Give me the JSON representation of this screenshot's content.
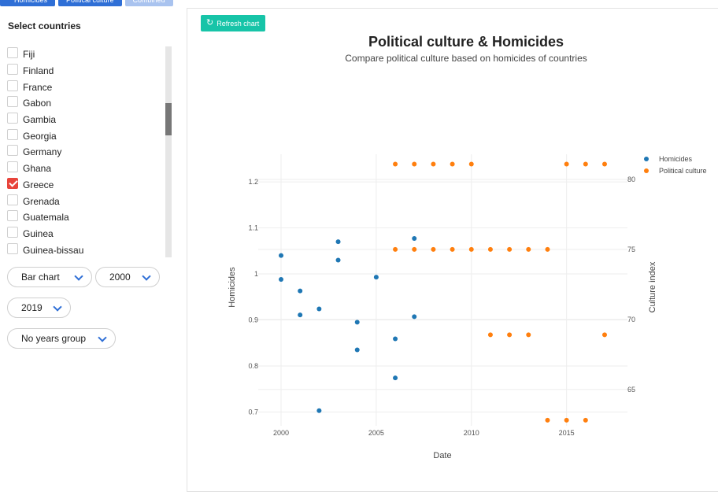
{
  "top_tabs": [
    "Homicides",
    "Political culture",
    "Combined"
  ],
  "sidebar": {
    "heading": "Select countries",
    "countries": [
      {
        "name": "Fiji",
        "checked": false
      },
      {
        "name": "Finland",
        "checked": false
      },
      {
        "name": "France",
        "checked": false
      },
      {
        "name": "Gabon",
        "checked": false
      },
      {
        "name": "Gambia",
        "checked": false
      },
      {
        "name": "Georgia",
        "checked": false
      },
      {
        "name": "Germany",
        "checked": false
      },
      {
        "name": "Ghana",
        "checked": false
      },
      {
        "name": "Greece",
        "checked": true
      },
      {
        "name": "Grenada",
        "checked": false
      },
      {
        "name": "Guatemala",
        "checked": false
      },
      {
        "name": "Guinea",
        "checked": false
      },
      {
        "name": "Guinea-bissau",
        "checked": false
      }
    ],
    "chart_type": "Bar chart",
    "year_from": "2000",
    "year_to": "2019",
    "years_group": "No years group"
  },
  "refresh_label": "Refresh chart",
  "chart_data": {
    "type": "scatter",
    "title": "Political culture & Homicides",
    "subtitle": "Compare political culture based on homicides of countries",
    "xlabel": "Date",
    "ylabel": "Homicides",
    "y2label": "Culture index",
    "xlim": [
      1998.8,
      2018.2
    ],
    "ylim": [
      0.67,
      1.26
    ],
    "y2lim": [
      62.4,
      81.8
    ],
    "xticks": [
      2000,
      2005,
      2010,
      2015
    ],
    "yticks": [
      0.7,
      0.8,
      0.9,
      1,
      1.1,
      1.2
    ],
    "y2ticks": [
      65,
      70,
      75,
      80
    ],
    "legend_position": "top-right",
    "series": [
      {
        "name": "Homicides",
        "axis": "left",
        "color": "#1f77b4",
        "points": [
          [
            2000,
            1.04
          ],
          [
            2000,
            0.988
          ],
          [
            2001,
            0.963
          ],
          [
            2001,
            0.911
          ],
          [
            2002,
            0.924
          ],
          [
            2002,
            0.703
          ],
          [
            2003,
            1.07
          ],
          [
            2003,
            1.03
          ],
          [
            2004,
            0.895
          ],
          [
            2004,
            0.835
          ],
          [
            2005,
            0.993
          ],
          [
            2006,
            0.859
          ],
          [
            2006,
            0.774
          ],
          [
            2007,
            1.077
          ],
          [
            2007,
            0.907
          ]
        ]
      },
      {
        "name": "Political culture",
        "axis": "right",
        "color": "#ff7f0e",
        "points": [
          [
            2006,
            81.1
          ],
          [
            2007,
            81.1
          ],
          [
            2008,
            81.1
          ],
          [
            2009,
            81.1
          ],
          [
            2010,
            81.1
          ],
          [
            2006,
            75
          ],
          [
            2007,
            75
          ],
          [
            2008,
            75
          ],
          [
            2009,
            75
          ],
          [
            2010,
            75
          ],
          [
            2011,
            75
          ],
          [
            2012,
            75
          ],
          [
            2013,
            75
          ],
          [
            2014,
            75
          ],
          [
            2011,
            68.9
          ],
          [
            2012,
            68.9
          ],
          [
            2013,
            68.9
          ],
          [
            2014,
            62.8
          ],
          [
            2015,
            62.8
          ],
          [
            2016,
            62.8
          ],
          [
            2015,
            81.1
          ],
          [
            2016,
            81.1
          ],
          [
            2017,
            81.1
          ],
          [
            2017,
            68.9
          ]
        ]
      }
    ]
  }
}
